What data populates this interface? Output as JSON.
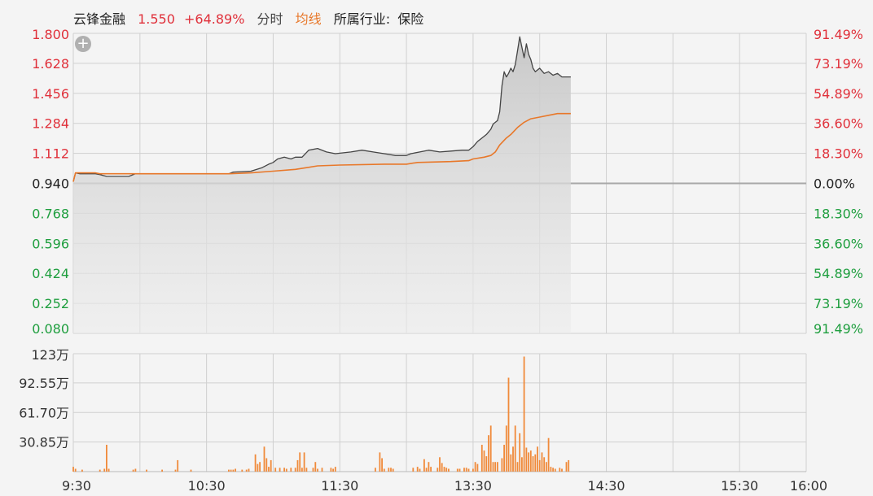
{
  "header": {
    "name": "云锋金融",
    "price": "1.550",
    "change_pct": "+64.89%",
    "mode_label": "分时",
    "avg_label": "均线",
    "industry_label": "所属行业:",
    "industry": "保险"
  },
  "zoom_symbol": "+",
  "colors": {
    "up": "#e0303a",
    "down": "#1e9e3e",
    "price_line": "#444444",
    "avg_line": "#e8782a",
    "volume_bar": "#f08a3a",
    "grid": "#d0d0d0",
    "area_top": "#c8c8c8"
  },
  "chart_data": {
    "type": "line",
    "prev_close": 0.94,
    "price_axis": {
      "ticks": [
        1.8,
        1.628,
        1.456,
        1.284,
        1.112,
        0.94,
        0.768,
        0.596,
        0.424,
        0.252,
        0.08
      ],
      "labels": [
        "1.800",
        "1.628",
        "1.456",
        "1.284",
        "1.112",
        "0.940",
        "0.768",
        "0.596",
        "0.424",
        "0.252",
        "0.080"
      ],
      "ylim": [
        0.08,
        1.8
      ]
    },
    "pct_axis": {
      "labels": [
        "91.49%",
        "73.19%",
        "54.89%",
        "36.60%",
        "18.30%",
        "0.00%",
        "18.30%",
        "36.60%",
        "54.89%",
        "73.19%",
        "91.49%"
      ]
    },
    "time_axis": {
      "total_minutes": 330,
      "ticks": [
        {
          "label": "9:30",
          "minute": 0
        },
        {
          "label": "10:30",
          "minute": 60
        },
        {
          "label": "11:30",
          "minute": 120
        },
        {
          "label": "13:30",
          "minute": 180
        },
        {
          "label": "14:30",
          "minute": 240
        },
        {
          "label": "15:30",
          "minute": 300
        },
        {
          "label": "16:00",
          "minute": 330
        }
      ]
    },
    "series": [
      {
        "name": "price",
        "points": [
          [
            0,
            0.95
          ],
          [
            1,
            1.0
          ],
          [
            3,
            0.995
          ],
          [
            10,
            0.995
          ],
          [
            12,
            0.99
          ],
          [
            15,
            0.98
          ],
          [
            25,
            0.98
          ],
          [
            28,
            0.995
          ],
          [
            70,
            0.995
          ],
          [
            72,
            1.005
          ],
          [
            80,
            1.01
          ],
          [
            85,
            1.03
          ],
          [
            88,
            1.05
          ],
          [
            90,
            1.06
          ],
          [
            92,
            1.08
          ],
          [
            95,
            1.09
          ],
          [
            98,
            1.08
          ],
          [
            100,
            1.09
          ],
          [
            103,
            1.09
          ],
          [
            106,
            1.13
          ],
          [
            110,
            1.14
          ],
          [
            114,
            1.12
          ],
          [
            118,
            1.11
          ],
          [
            125,
            1.12
          ],
          [
            130,
            1.13
          ],
          [
            135,
            1.12
          ],
          [
            140,
            1.11
          ],
          [
            145,
            1.1
          ],
          [
            150,
            1.1
          ],
          [
            152,
            1.11
          ],
          [
            156,
            1.12
          ],
          [
            160,
            1.13
          ],
          [
            165,
            1.12
          ],
          [
            170,
            1.125
          ],
          [
            175,
            1.13
          ],
          [
            178,
            1.13
          ],
          [
            180,
            1.15
          ],
          [
            182,
            1.18
          ],
          [
            184,
            1.2
          ],
          [
            186,
            1.22
          ],
          [
            188,
            1.25
          ],
          [
            189,
            1.28
          ],
          [
            191,
            1.3
          ],
          [
            192,
            1.35
          ],
          [
            193,
            1.5
          ],
          [
            194,
            1.58
          ],
          [
            195,
            1.55
          ],
          [
            196,
            1.57
          ],
          [
            197,
            1.6
          ],
          [
            198,
            1.58
          ],
          [
            199,
            1.62
          ],
          [
            200,
            1.7
          ],
          [
            201,
            1.78
          ],
          [
            202,
            1.72
          ],
          [
            203,
            1.66
          ],
          [
            204,
            1.74
          ],
          [
            205,
            1.68
          ],
          [
            206,
            1.65
          ],
          [
            207,
            1.6
          ],
          [
            208,
            1.58
          ],
          [
            210,
            1.6
          ],
          [
            212,
            1.57
          ],
          [
            214,
            1.58
          ],
          [
            216,
            1.56
          ],
          [
            218,
            1.57
          ],
          [
            220,
            1.55
          ],
          [
            222,
            1.55
          ],
          [
            224,
            1.55
          ]
        ]
      },
      {
        "name": "average",
        "points": [
          [
            0,
            0.95
          ],
          [
            1,
            1.0
          ],
          [
            10,
            1.0
          ],
          [
            12,
            0.995
          ],
          [
            25,
            0.995
          ],
          [
            28,
            0.995
          ],
          [
            70,
            0.995
          ],
          [
            80,
            1.0
          ],
          [
            90,
            1.01
          ],
          [
            100,
            1.02
          ],
          [
            105,
            1.03
          ],
          [
            110,
            1.04
          ],
          [
            120,
            1.045
          ],
          [
            140,
            1.05
          ],
          [
            150,
            1.05
          ],
          [
            155,
            1.06
          ],
          [
            170,
            1.065
          ],
          [
            178,
            1.07
          ],
          [
            180,
            1.08
          ],
          [
            185,
            1.09
          ],
          [
            188,
            1.1
          ],
          [
            190,
            1.12
          ],
          [
            192,
            1.16
          ],
          [
            195,
            1.2
          ],
          [
            197,
            1.22
          ],
          [
            200,
            1.26
          ],
          [
            203,
            1.29
          ],
          [
            206,
            1.31
          ],
          [
            210,
            1.32
          ],
          [
            214,
            1.33
          ],
          [
            218,
            1.34
          ],
          [
            224,
            1.34
          ]
        ]
      }
    ],
    "volume": {
      "axis_labels": [
        "123万",
        "92.55万",
        "61.70万",
        "30.85万"
      ],
      "ylim": [
        0,
        123
      ],
      "label_ticks": [
        123,
        92.55,
        61.7,
        30.85
      ],
      "bars": [
        [
          0,
          5
        ],
        [
          1,
          3
        ],
        [
          4,
          2
        ],
        [
          12,
          2
        ],
        [
          14,
          3
        ],
        [
          15,
          28
        ],
        [
          16,
          3
        ],
        [
          27,
          2
        ],
        [
          28,
          3
        ],
        [
          33,
          2
        ],
        [
          40,
          2
        ],
        [
          46,
          2
        ],
        [
          47,
          12
        ],
        [
          53,
          2
        ],
        [
          70,
          2
        ],
        [
          71,
          2
        ],
        [
          72,
          2
        ],
        [
          73,
          3
        ],
        [
          76,
          2
        ],
        [
          78,
          2
        ],
        [
          79,
          3
        ],
        [
          82,
          18
        ],
        [
          83,
          8
        ],
        [
          84,
          10
        ],
        [
          86,
          26
        ],
        [
          87,
          14
        ],
        [
          88,
          5
        ],
        [
          89,
          12
        ],
        [
          91,
          4
        ],
        [
          93,
          4
        ],
        [
          95,
          4
        ],
        [
          96,
          3
        ],
        [
          98,
          4
        ],
        [
          100,
          4
        ],
        [
          101,
          12
        ],
        [
          102,
          20
        ],
        [
          103,
          4
        ],
        [
          104,
          20
        ],
        [
          105,
          4
        ],
        [
          108,
          4
        ],
        [
          109,
          10
        ],
        [
          110,
          3
        ],
        [
          112,
          4
        ],
        [
          116,
          4
        ],
        [
          117,
          3
        ],
        [
          118,
          5
        ],
        [
          136,
          4
        ],
        [
          138,
          20
        ],
        [
          139,
          14
        ],
        [
          140,
          3
        ],
        [
          142,
          4
        ],
        [
          143,
          4
        ],
        [
          144,
          3
        ],
        [
          153,
          4
        ],
        [
          155,
          5
        ],
        [
          156,
          3
        ],
        [
          158,
          13
        ],
        [
          159,
          4
        ],
        [
          160,
          10
        ],
        [
          161,
          5
        ],
        [
          164,
          4
        ],
        [
          165,
          15
        ],
        [
          166,
          9
        ],
        [
          167,
          5
        ],
        [
          168,
          4
        ],
        [
          169,
          3
        ],
        [
          173,
          3
        ],
        [
          174,
          3
        ],
        [
          176,
          4
        ],
        [
          177,
          4
        ],
        [
          178,
          3
        ],
        [
          180,
          3
        ],
        [
          181,
          10
        ],
        [
          182,
          8
        ],
        [
          184,
          28
        ],
        [
          185,
          22
        ],
        [
          186,
          16
        ],
        [
          187,
          38
        ],
        [
          188,
          48
        ],
        [
          189,
          10
        ],
        [
          190,
          10
        ],
        [
          191,
          10
        ],
        [
          193,
          14
        ],
        [
          194,
          28
        ],
        [
          195,
          48
        ],
        [
          196,
          98
        ],
        [
          197,
          18
        ],
        [
          198,
          26
        ],
        [
          199,
          48
        ],
        [
          200,
          10
        ],
        [
          201,
          40
        ],
        [
          202,
          15
        ],
        [
          203,
          120
        ],
        [
          204,
          25
        ],
        [
          205,
          20
        ],
        [
          206,
          22
        ],
        [
          207,
          16
        ],
        [
          208,
          18
        ],
        [
          209,
          26
        ],
        [
          210,
          12
        ],
        [
          211,
          20
        ],
        [
          212,
          15
        ],
        [
          213,
          10
        ],
        [
          214,
          35
        ],
        [
          215,
          5
        ],
        [
          216,
          4
        ],
        [
          217,
          3
        ],
        [
          219,
          4
        ],
        [
          220,
          3
        ],
        [
          222,
          10
        ],
        [
          223,
          12
        ]
      ]
    }
  }
}
